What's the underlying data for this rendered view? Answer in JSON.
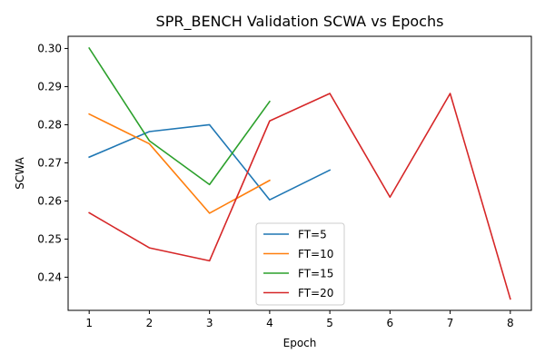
{
  "chart_data": {
    "type": "line",
    "title": "SPR_BENCH Validation SCWA vs Epochs",
    "xlabel": "Epoch",
    "ylabel": "SCWA",
    "xlim": [
      0.65,
      8.35
    ],
    "ylim": [
      0.2313,
      0.3032
    ],
    "xticks": [
      1,
      2,
      3,
      4,
      5,
      6,
      7,
      8
    ],
    "yticks": [
      0.24,
      0.25,
      0.26,
      0.27,
      0.28,
      0.29,
      0.3
    ],
    "yticklabels": [
      "0.24",
      "0.25",
      "0.26",
      "0.27",
      "0.28",
      "0.29",
      "0.30"
    ],
    "grid": false,
    "legend": "lower center",
    "series": [
      {
        "name": "FT=5",
        "color": "#1f77b4",
        "x": [
          1,
          2,
          3,
          4,
          5
        ],
        "y": [
          0.2715,
          0.2782,
          0.28,
          0.2603,
          0.2681
        ]
      },
      {
        "name": "FT=10",
        "color": "#ff7f0e",
        "x": [
          1,
          2,
          3,
          4
        ],
        "y": [
          0.2828,
          0.275,
          0.2568,
          0.2654
        ]
      },
      {
        "name": "FT=15",
        "color": "#2ca02c",
        "x": [
          1,
          2,
          3,
          4
        ],
        "y": [
          0.3001,
          0.2758,
          0.2643,
          0.2861
        ]
      },
      {
        "name": "FT=20",
        "color": "#d62728",
        "x": [
          1,
          2,
          3,
          4,
          5,
          6,
          7,
          8
        ],
        "y": [
          0.2569,
          0.2477,
          0.2443,
          0.281,
          0.2882,
          0.261,
          0.2882,
          0.2343
        ]
      }
    ]
  }
}
